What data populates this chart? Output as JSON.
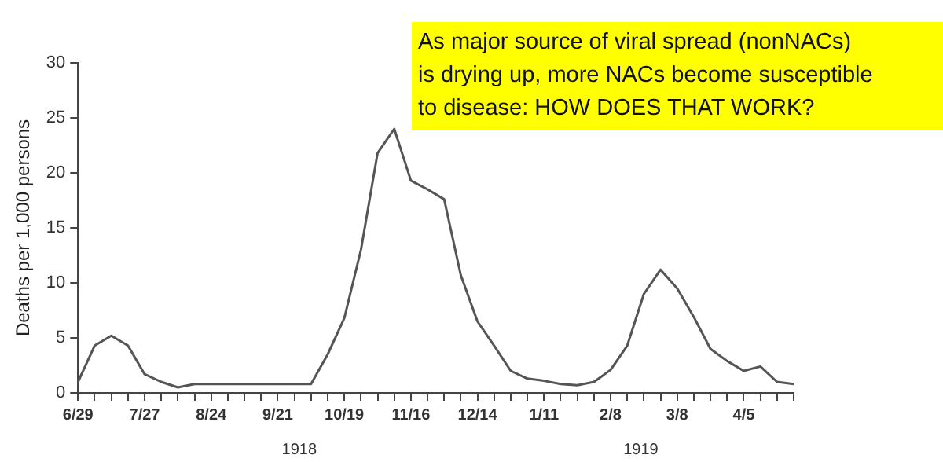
{
  "chart_data": {
    "type": "line",
    "ylabel": "Deaths per 1,000 persons",
    "categories": [
      "6/29",
      null,
      null,
      null,
      "7/27",
      null,
      null,
      null,
      "8/24",
      null,
      null,
      null,
      "9/21",
      null,
      null,
      null,
      "10/19",
      null,
      null,
      null,
      "11/16",
      null,
      null,
      null,
      "12/14",
      null,
      null,
      null,
      "1/11",
      null,
      null,
      null,
      "2/8",
      null,
      null,
      null,
      "3/8",
      null,
      null,
      null,
      "4/5",
      null,
      null,
      null
    ],
    "series": [
      {
        "color": "#555555",
        "values": [
          1,
          4.3,
          5.2,
          4.3,
          1.7,
          1,
          0.5,
          0.8,
          0.8,
          0.8,
          0.8,
          0.8,
          0.8,
          0.8,
          0.8,
          3.5,
          6.8,
          13,
          21.8,
          24,
          19.3,
          18.5,
          17.6,
          10.7,
          6.5,
          4.3,
          2,
          1.3,
          1.1,
          0.8,
          0.7,
          1,
          2.1,
          4.3,
          9,
          11.2,
          9.5,
          6.9,
          4,
          2.9,
          2,
          2.4,
          1,
          0.8
        ]
      }
    ],
    "ylim": [
      0,
      30
    ],
    "yticks": [
      0,
      5,
      10,
      15,
      20,
      25,
      30
    ],
    "grid": false,
    "legend": false,
    "marker": "none",
    "line_style": "solid",
    "annotations": [
      "As major source of viral spread (nonNACs)\nis drying up, more NACs become susceptible\nto disease: HOW DOES THAT WORK?",
      "1918",
      "1919"
    ]
  }
}
